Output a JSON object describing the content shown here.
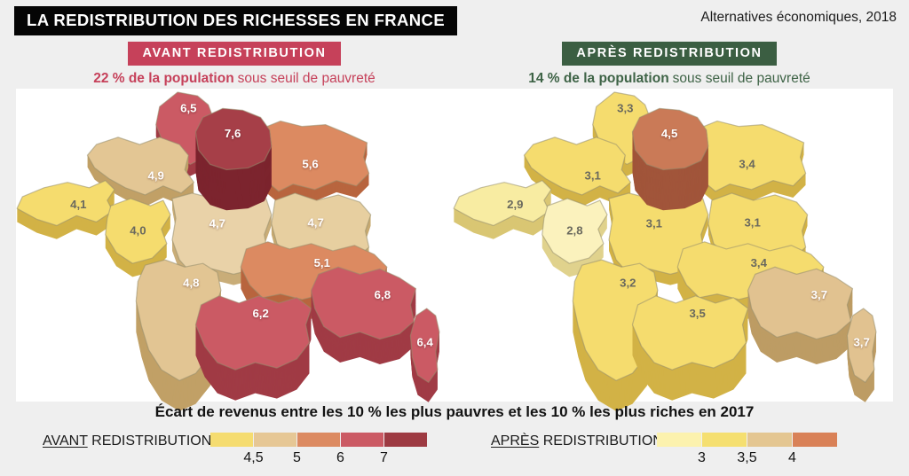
{
  "title": "LA REDISTRIBUTION DES RICHESSES EN FRANCE",
  "source": "Alternatives économiques, 2018",
  "panels": {
    "avant": {
      "badge": "AVANT REDISTRIBUTION",
      "stat_bold": "22 % de la population",
      "stat_rest": "sous seuil de pauvreté",
      "accent": "#c6415a"
    },
    "apres": {
      "badge": "APRÈS REDISTRIBUTION",
      "stat_bold": "14 % de la population",
      "stat_rest": "sous seuil de pauvreté",
      "accent": "#3b5e42",
      "text_color": "#3e6346"
    }
  },
  "caption": "Écart de revenus entre les 10 % les plus pauvres et les 10 % les plus riches en 2017",
  "legends": {
    "avant": {
      "word_underlined": "AVANT",
      "word_rest": "REDISTRIBUTION",
      "swatches": [
        "#f5dc70",
        "#e6c795",
        "#dc8a61",
        "#cb5a64",
        "#9d3a42"
      ],
      "ticks": [
        "4,5",
        "5",
        "6",
        "7"
      ]
    },
    "apres": {
      "word_underlined": "APRÈS",
      "word_rest": "REDISTRIBUTION",
      "swatches": [
        "#fcf2ae",
        "#f5df70",
        "#e4c691",
        "#d98157"
      ],
      "ticks": [
        "3",
        "3,5",
        "4"
      ]
    }
  },
  "chart_data": {
    "type": "choropleth",
    "title": "Écart de revenus entre les 10 % les plus pauvres et les 10 % les plus riches en 2017",
    "region_order": [
      "grand-est",
      "hauts-de-france",
      "normandie",
      "bretagne",
      "pays-de-la-loire",
      "centre-val-de-loire",
      "bourgogne-franche-comte",
      "nouvelle-aquitaine",
      "auvergne-rhone-alpes",
      "occitanie",
      "provence-alpes-cote-d-azur",
      "corse",
      "ile-de-france"
    ],
    "maps": {
      "avant": {
        "badge": "AVANT REDISTRIBUTION",
        "poverty_stat": "22 % de la population sous seuil de pauvreté",
        "legend_ticks": [
          4.5,
          5,
          6,
          7
        ],
        "regions": [
          {
            "value": "5,6",
            "v": 5.6,
            "fill": "#dc8a61",
            "side": "#b8653e",
            "text": "#ffffff"
          },
          {
            "value": "6,5",
            "v": 6.5,
            "fill": "#cb5a64",
            "side": "#a03b45",
            "text": "#ffffff"
          },
          {
            "value": "4,9",
            "v": 4.9,
            "fill": "#e3c694",
            "side": "#c1a066",
            "text": "#ffffff"
          },
          {
            "value": "4,1",
            "v": 4.1,
            "fill": "#f5dc6e",
            "side": "#d2b246",
            "text": "#6a695e"
          },
          {
            "value": "4,0",
            "v": 4.0,
            "fill": "#f5dc6e",
            "side": "#d2b246",
            "text": "#6a695e"
          },
          {
            "value": "4,7",
            "v": 4.7,
            "fill": "#e9d2a8",
            "side": "#c9ad78",
            "text": "#ffffff"
          },
          {
            "value": "4,7",
            "v": 4.7,
            "fill": "#e7cfa0",
            "side": "#c7aa72",
            "text": "#ffffff"
          },
          {
            "value": "4,8",
            "v": 4.8,
            "fill": "#e2c593",
            "side": "#c1a066",
            "text": "#ffffff"
          },
          {
            "value": "5,1",
            "v": 5.1,
            "fill": "#dc8a61",
            "side": "#b8653e",
            "text": "#ffffff"
          },
          {
            "value": "6,2",
            "v": 6.2,
            "fill": "#cb5a64",
            "side": "#a03b45",
            "text": "#ffffff"
          },
          {
            "value": "6,8",
            "v": 6.8,
            "fill": "#cb5a64",
            "side": "#a03b45",
            "text": "#ffffff"
          },
          {
            "value": "6,4",
            "v": 6.4,
            "fill": "#cb5a64",
            "side": "#a03b45",
            "text": "#ffffff"
          },
          {
            "value": "7,6",
            "v": 7.6,
            "fill": "#a63f48",
            "side": "#7c242e",
            "text": "#ffffff"
          }
        ]
      },
      "apres": {
        "badge": "APRÈS REDISTRIBUTION",
        "poverty_stat": "14 % de la population sous seuil de pauvreté",
        "legend_ticks": [
          3,
          3.5,
          4
        ],
        "regions": [
          {
            "value": "3,4",
            "v": 3.4,
            "fill": "#f5dc6e",
            "side": "#d2b246",
            "text": "#6a695e"
          },
          {
            "value": "3,3",
            "v": 3.3,
            "fill": "#f5dc6e",
            "side": "#d2b246",
            "text": "#6a695e"
          },
          {
            "value": "3,1",
            "v": 3.1,
            "fill": "#f5dc6e",
            "side": "#d2b246",
            "text": "#6a695e"
          },
          {
            "value": "2,9",
            "v": 2.9,
            "fill": "#f8eca2",
            "side": "#d9c673",
            "text": "#6a695e"
          },
          {
            "value": "2,8",
            "v": 2.8,
            "fill": "#fbf2bd",
            "side": "#e0d28d",
            "text": "#6a695e"
          },
          {
            "value": "3,1",
            "v": 3.1,
            "fill": "#f5dc6e",
            "side": "#d2b246",
            "text": "#6a695e"
          },
          {
            "value": "3,1",
            "v": 3.1,
            "fill": "#f5dc6e",
            "side": "#d2b246",
            "text": "#6a695e"
          },
          {
            "value": "3,2",
            "v": 3.2,
            "fill": "#f5dc6e",
            "side": "#d2b246",
            "text": "#6a695e"
          },
          {
            "value": "3,4",
            "v": 3.4,
            "fill": "#f5dc6e",
            "side": "#d2b246",
            "text": "#6a695e"
          },
          {
            "value": "3,5",
            "v": 3.5,
            "fill": "#f5dc6e",
            "side": "#d2b246",
            "text": "#6a695e"
          },
          {
            "value": "3,7",
            "v": 3.7,
            "fill": "#e1c290",
            "side": "#bd9c64",
            "text": "#ffffff"
          },
          {
            "value": "3,7",
            "v": 3.7,
            "fill": "#e1c290",
            "side": "#bd9c64",
            "text": "#ffffff"
          },
          {
            "value": "4,5",
            "v": 4.5,
            "fill": "#ca7a57",
            "side": "#a1553a",
            "text": "#ffffff"
          }
        ]
      }
    }
  }
}
